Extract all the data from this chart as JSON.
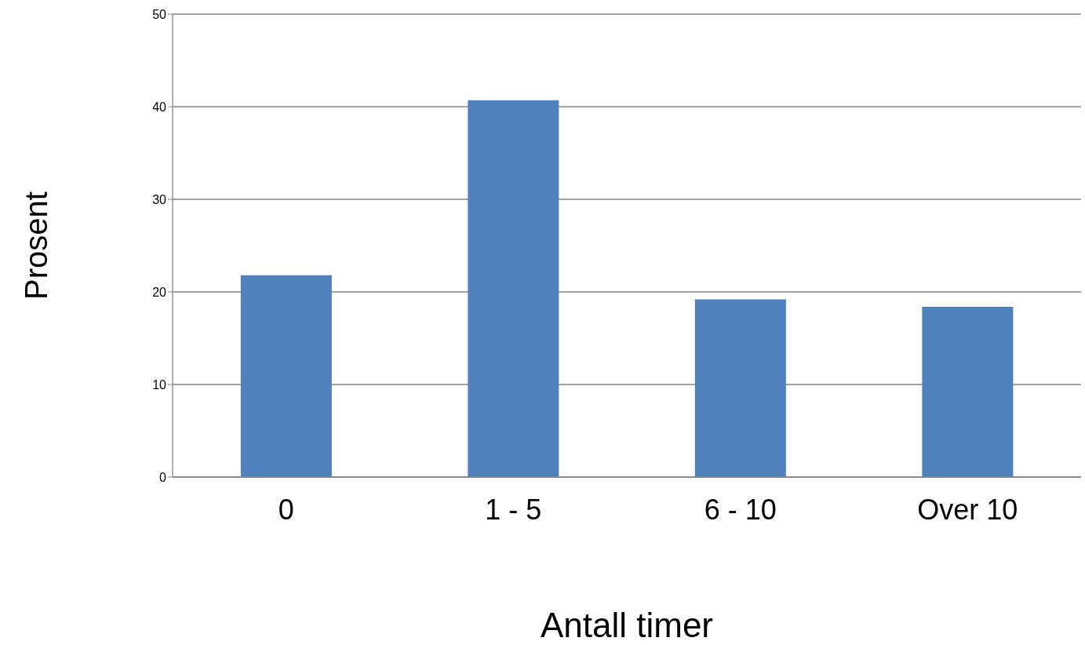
{
  "chart_data": {
    "type": "bar",
    "xlabel": "Antall timer",
    "ylabel": "Prosent",
    "categories": [
      "0",
      "1 - 5",
      "6 - 10",
      "Over 10"
    ],
    "values": [
      21.8,
      40.7,
      19.2,
      18.4
    ],
    "color": "#4f81bd",
    "ylim": [
      0,
      50
    ],
    "yticks": [
      0,
      10,
      20,
      30,
      40,
      50
    ],
    "grid": "y"
  }
}
